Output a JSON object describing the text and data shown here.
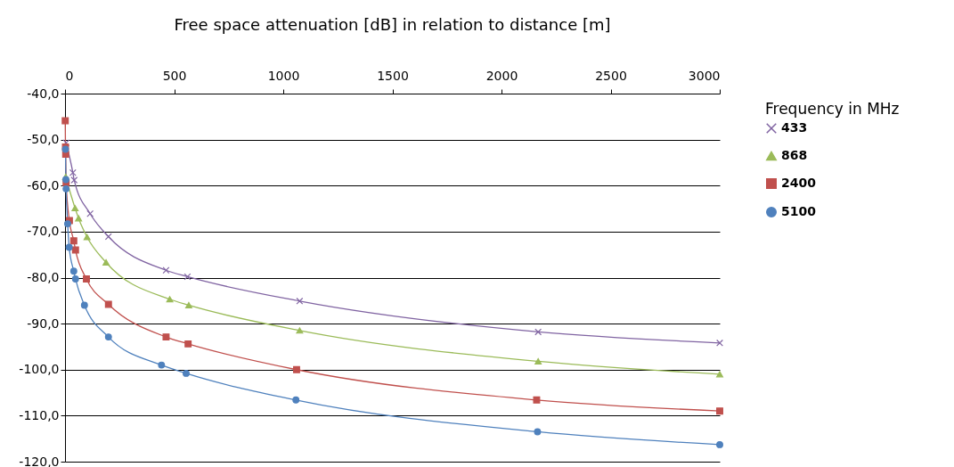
{
  "chart_data": {
    "type": "line",
    "title": "Free space attenuation [dB] in relation to distance [m]",
    "legend_title": "Frequency in MHz",
    "legend": "right",
    "grid": "y",
    "line_style": "solid",
    "xlim": [
      0,
      3000
    ],
    "xticks": [
      0,
      500,
      1000,
      1500,
      2000,
      2500,
      3000
    ],
    "ylim": [
      -120,
      -40
    ],
    "yticks": [
      {
        "value": -120,
        "label": "-120,0"
      },
      {
        "value": -110,
        "label": "-110,0"
      },
      {
        "value": -100,
        "label": "-100,0"
      },
      {
        "value": -90,
        "label": "-90,0"
      },
      {
        "value": -80,
        "label": "-80,0"
      },
      {
        "value": -70,
        "label": "-70,0"
      },
      {
        "value": -60,
        "label": "-60,0"
      },
      {
        "value": -50,
        "label": "-50,0"
      },
      {
        "value": -40,
        "label": "-40,0"
      }
    ],
    "series": [
      {
        "name": "433",
        "color": "#8064a2",
        "marker": "cross",
        "x": [
          5,
          36,
          42,
          115,
          199,
          463,
          561,
          1075,
          2168,
          3000
        ],
        "values": [
          -50.7,
          -57.2,
          -58.8,
          -66.1,
          -71.1,
          -78.4,
          -79.8,
          -85.1,
          -91.8,
          -94.2
        ]
      },
      {
        "name": "868",
        "color": "#9bbb59",
        "marker": "triangle",
        "x": [
          3,
          46,
          62,
          101,
          188,
          480,
          567,
          1075,
          2168,
          3000
        ],
        "values": [
          -58.1,
          -64.9,
          -67.1,
          -71.2,
          -76.7,
          -84.7,
          -86.0,
          -91.5,
          -98.2,
          -101.0
        ]
      },
      {
        "name": "2400",
        "color": "#c0504d",
        "marker": "square",
        "x": [
          1,
          2,
          3,
          5,
          20,
          40,
          48,
          98,
          199,
          463,
          564,
          1061,
          2161,
          3000
        ],
        "values": [
          -45.9,
          -51.6,
          -53.2,
          -59.4,
          -67.6,
          -72.0,
          -74.0,
          -80.3,
          -85.8,
          -92.9,
          -94.4,
          -100.0,
          -106.6,
          -109.0
        ]
      },
      {
        "name": "5100",
        "color": "#4f81bd",
        "marker": "circle",
        "x": [
          2,
          4,
          5,
          12,
          19,
          40,
          48,
          89,
          199,
          442,
          555,
          1058,
          2165,
          3000
        ],
        "values": [
          -52.1,
          -58.7,
          -60.7,
          -68.3,
          -73.4,
          -78.6,
          -80.3,
          -86.0,
          -92.9,
          -99.0,
          -100.8,
          -106.6,
          -113.5,
          -116.3
        ]
      }
    ]
  }
}
